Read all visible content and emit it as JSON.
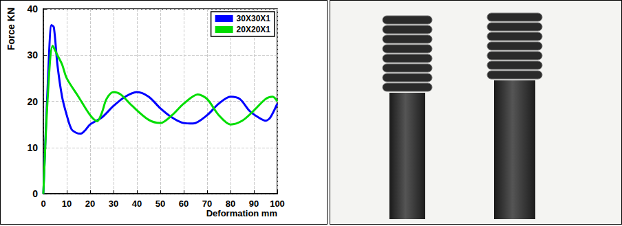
{
  "chart_data": {
    "type": "line",
    "xlabel": "Deformation mm",
    "ylabel": "Force KN",
    "series": [
      {
        "name": "30X30X1",
        "color": "#0000ff",
        "x": [
          0,
          2,
          3.5,
          4.5,
          6,
          8,
          10,
          12,
          14,
          16,
          18,
          20,
          25,
          30,
          35,
          40,
          45,
          50,
          55,
          60,
          64,
          70,
          75,
          80,
          84,
          88,
          92,
          95,
          97,
          100
        ],
        "values": [
          0,
          25,
          36.5,
          36,
          28,
          21,
          17,
          14,
          13.2,
          13,
          13.8,
          15,
          16.5,
          19,
          21,
          22,
          21,
          18.5,
          16.5,
          15.3,
          15.2,
          17,
          19.5,
          21,
          20.5,
          18,
          16.5,
          15.8,
          16.5,
          19.5
        ]
      },
      {
        "name": "20X20X1",
        "color": "#00dd00",
        "x": [
          0,
          2,
          4,
          6,
          8,
          10,
          15,
          20,
          23,
          25,
          27,
          30,
          33,
          38,
          45,
          50,
          55,
          60,
          66,
          70,
          75,
          80,
          85,
          90,
          95,
          98,
          100
        ],
        "values": [
          0,
          22,
          32,
          30,
          28,
          25,
          21,
          17,
          15.7,
          17.5,
          20.5,
          22,
          21.5,
          19,
          16,
          15.3,
          17,
          19.5,
          21.5,
          20.5,
          17,
          15,
          15.8,
          18,
          20.5,
          21,
          20
        ]
      }
    ],
    "xlim": [
      0,
      100
    ],
    "xticks": [
      0,
      10,
      20,
      30,
      40,
      50,
      60,
      70,
      80,
      90,
      100
    ],
    "ylim": [
      0,
      40
    ],
    "yticks": [
      0,
      10,
      20,
      30,
      40
    ],
    "grid": true,
    "legend": "top-right"
  }
}
